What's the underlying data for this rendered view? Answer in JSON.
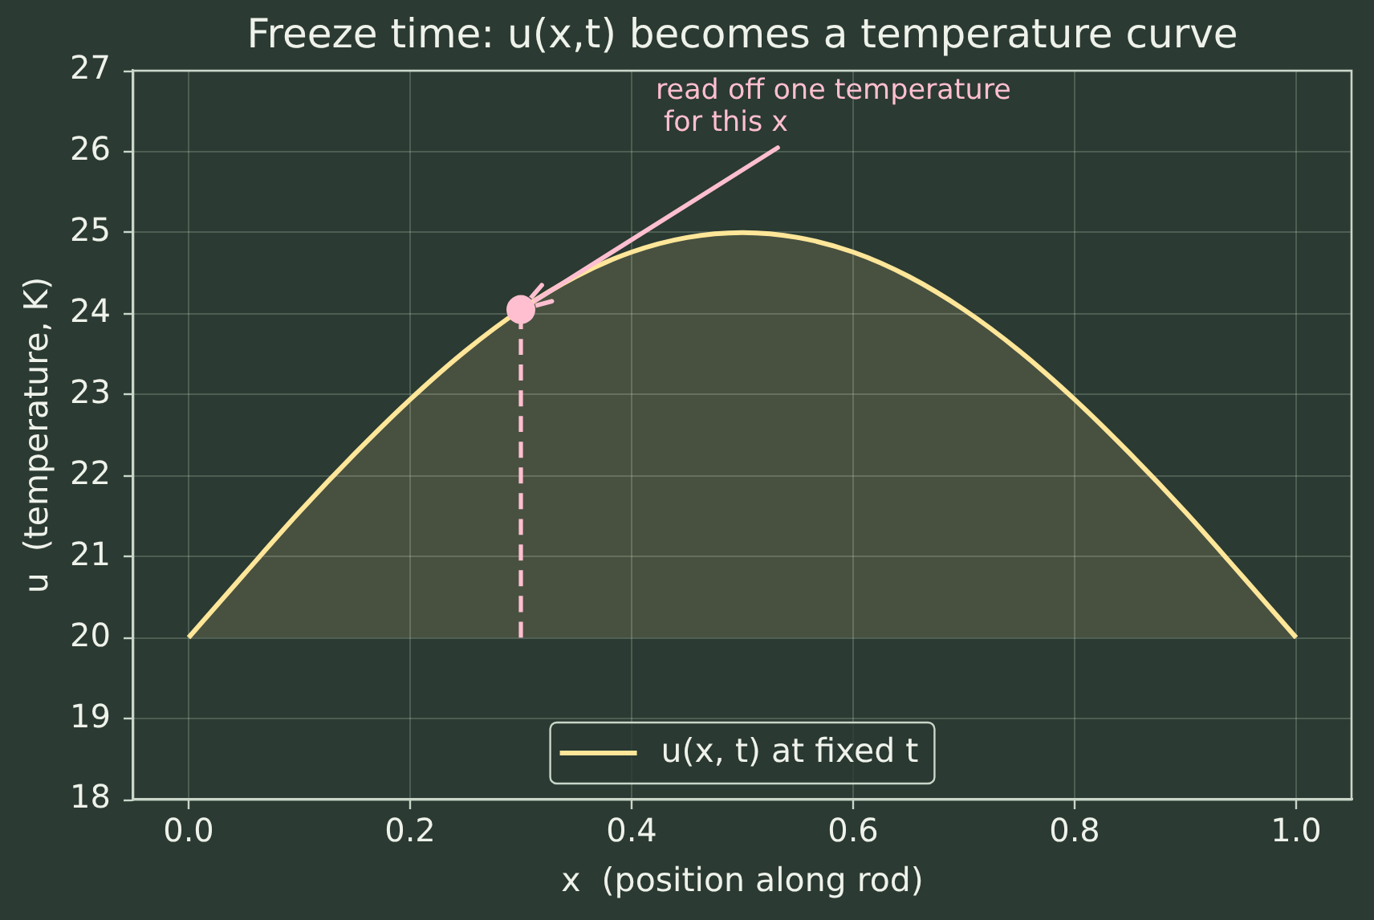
{
  "chart_data": {
    "type": "line",
    "title": "Freeze time: u(x,t) becomes a temperature curve",
    "xlabel": "x  (position along rod)",
    "ylabel": "u  (temperature, K)",
    "xlim": [
      -0.05,
      1.05
    ],
    "xticks": [
      {
        "value": 0,
        "label": "0.0"
      },
      0.2,
      0.4,
      0.6,
      0.8,
      {
        "value": 1,
        "label": "1.0"
      }
    ],
    "ylim": [
      18,
      27
    ],
    "yticks": [
      18,
      19,
      20,
      21,
      22,
      23,
      24,
      25,
      26,
      27
    ],
    "grid": true,
    "legend": "bottom",
    "series": [
      {
        "name": "u(x, t) at fixed t",
        "type": "area",
        "color": "#ffe699",
        "x": [
          0,
          0.05,
          0.1,
          0.15,
          0.2,
          0.25,
          0.3,
          0.35,
          0.4,
          0.45,
          0.5,
          0.55,
          0.6,
          0.65,
          0.7,
          0.75,
          0.8,
          0.85,
          0.9,
          0.95,
          1
        ],
        "values": [
          20.0,
          20.78,
          21.55,
          22.27,
          22.94,
          23.54,
          24.05,
          24.46,
          24.76,
          24.94,
          25.0,
          24.94,
          24.76,
          24.46,
          24.05,
          23.54,
          22.94,
          22.27,
          21.55,
          20.78,
          20.0
        ]
      },
      {
        "type": "line",
        "color": "#ffbfd0",
        "line_style": "dashed",
        "x": [
          0.3,
          0.3
        ],
        "values": [
          20.0,
          24.05
        ]
      },
      {
        "type": "scatter",
        "color": "#ffbfd0",
        "marker": "circle",
        "x": [
          0.3
        ],
        "values": [
          24.05
        ]
      }
    ],
    "annotations": [
      {
        "text": "read off one temperature\nfor this x",
        "x": 0.3,
        "y": 24.05
      }
    ]
  }
}
